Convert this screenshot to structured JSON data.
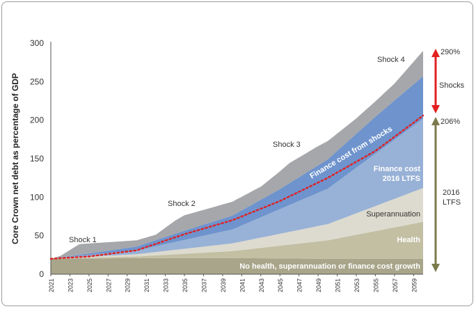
{
  "chart_data": {
    "type": "area",
    "ylabel": "Core Crown net debt as percentage of GDP",
    "xlabel": "",
    "ylim": [
      0,
      300
    ],
    "yticks": [
      0,
      50,
      100,
      150,
      200,
      250,
      300
    ],
    "x_ticks": [
      "2021",
      "2023",
      "2025",
      "2027",
      "2029",
      "2031",
      "2033",
      "2035",
      "2037",
      "2039",
      "2041",
      "2043",
      "2045",
      "2047",
      "2049",
      "2051",
      "2053",
      "2055",
      "2057",
      "2059"
    ],
    "x_range": [
      2021,
      2060
    ],
    "stack_order": [
      "No health, superannuation or finance cost growth",
      "Health",
      "Superannuation",
      "Finance cost 2016 LTFS",
      "Finance cost from shocks",
      "Shocks"
    ],
    "series": [
      {
        "name": "No health, superannuation or finance cost growth",
        "color": "#a8a58a",
        "x": [
          2021,
          2030,
          2040,
          2050,
          2060
        ],
        "values": [
          20,
          21,
          21,
          20,
          20
        ]
      },
      {
        "name": "Health",
        "color": "#c2bfa3",
        "x": [
          2021,
          2030,
          2040,
          2050,
          2060
        ],
        "values": [
          0,
          2,
          9,
          24,
          48
        ]
      },
      {
        "name": "Superannuation",
        "color": "#dddbcf",
        "x": [
          2021,
          2030,
          2040,
          2050,
          2060
        ],
        "values": [
          0,
          3,
          10,
          21,
          44
        ]
      },
      {
        "name": "Finance cost 2016 LTFS",
        "color": "#98b1d6",
        "x": [
          2021,
          2030,
          2040,
          2050,
          2060
        ],
        "values": [
          0,
          5,
          18,
          46,
          90
        ]
      },
      {
        "name": "Finance cost from shocks",
        "color": "#6e93cd",
        "x": [
          2021,
          2025,
          2030,
          2035,
          2040,
          2045,
          2050,
          2055,
          2060
        ],
        "values": [
          0,
          2,
          5,
          12,
          18,
          26,
          38,
          48,
          55
        ]
      },
      {
        "name": "Shocks",
        "color": "#a6a7aa",
        "x": [
          2021,
          2022,
          2024,
          2030,
          2032,
          2034,
          2035,
          2040,
          2043,
          2046,
          2049,
          2053,
          2055,
          2057,
          2060
        ],
        "values": [
          0,
          2,
          14,
          8,
          7,
          17,
          20,
          18,
          17,
          26,
          25,
          20,
          20,
          22,
          33
        ]
      }
    ],
    "ltfs_line": {
      "name": "2016 LTFS total",
      "color": "#e02020",
      "style": "dotted",
      "x": [
        2021,
        2025,
        2030,
        2035,
        2040,
        2045,
        2050,
        2055,
        2060
      ],
      "values": [
        20,
        23,
        31,
        52,
        70,
        95,
        125,
        160,
        206
      ]
    },
    "annotations": {
      "shocks": [
        "Shock 1",
        "Shock 2",
        "Shock 3",
        "Shock 4"
      ],
      "finance_shocks_label": "Finance cost from shocks",
      "finance_ltfs_label_1": "Finance cost",
      "finance_ltfs_label_2": "2016 LTFS",
      "super_label": "Superannuation",
      "health_label": "Health",
      "base_label": "No health, superannuation or finance cost growth",
      "right_top": "290%",
      "right_mid": "206%",
      "right_shocks": "Shocks",
      "right_ltfs_1": "2016",
      "right_ltfs_2": "LTFS"
    },
    "grid": false,
    "legend": "none"
  }
}
